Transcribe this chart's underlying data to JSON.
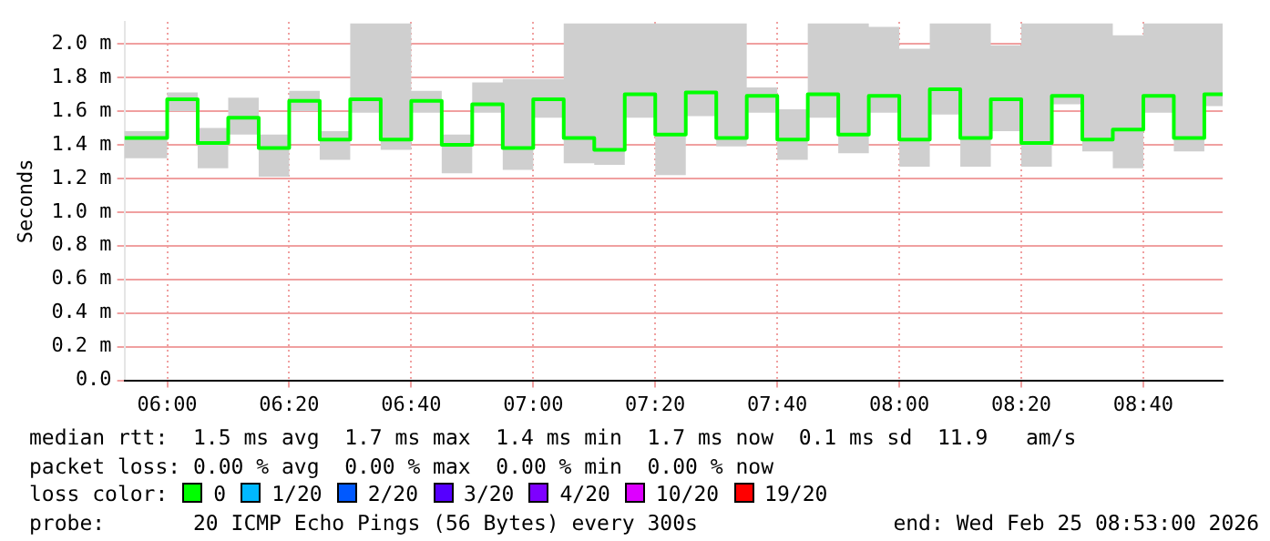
{
  "chart_data": {
    "type": "step",
    "ylabel": "Seconds",
    "x": [
      5.8833,
      6.0,
      6.0833,
      6.1667,
      6.25,
      6.3333,
      6.4167,
      6.5,
      6.5833,
      6.6667,
      6.75,
      6.8333,
      6.9167,
      7.0,
      7.0833,
      7.1667,
      7.25,
      7.3333,
      7.4167,
      7.5,
      7.5833,
      7.6667,
      7.75,
      7.8333,
      7.9167,
      8.0,
      8.0833,
      8.1667,
      8.25,
      8.3333,
      8.4167,
      8.5,
      8.5833,
      8.6667,
      8.75,
      8.8333,
      8.8833
    ],
    "series": [
      {
        "color": "#00ff00",
        "values": [
          1.44,
          1.67,
          1.41,
          1.56,
          1.38,
          1.66,
          1.43,
          1.67,
          1.43,
          1.66,
          1.4,
          1.64,
          1.38,
          1.67,
          1.44,
          1.37,
          1.7,
          1.46,
          1.71,
          1.44,
          1.69,
          1.43,
          1.7,
          1.46,
          1.69,
          1.43,
          1.73,
          1.44,
          1.67,
          1.41,
          1.69,
          1.43,
          1.49,
          1.69,
          1.44,
          1.7,
          1.7
        ],
        "lower": [
          1.32,
          1.6,
          1.26,
          1.46,
          1.21,
          1.6,
          1.31,
          1.59,
          1.37,
          1.59,
          1.23,
          1.59,
          1.25,
          1.56,
          1.29,
          1.28,
          1.56,
          1.22,
          1.57,
          1.39,
          1.59,
          1.31,
          1.56,
          1.35,
          1.59,
          1.27,
          1.58,
          1.27,
          1.48,
          1.27,
          1.64,
          1.36,
          1.26,
          1.59,
          1.36,
          1.63,
          1.63
        ],
        "upper": [
          1.48,
          1.71,
          1.5,
          1.68,
          1.46,
          1.72,
          1.48,
          2.12,
          2.12,
          1.72,
          1.46,
          1.77,
          1.79,
          1.79,
          2.12,
          2.12,
          2.12,
          2.12,
          2.12,
          2.12,
          1.74,
          1.61,
          2.12,
          2.12,
          2.1,
          1.97,
          2.12,
          2.12,
          1.99,
          2.12,
          2.12,
          2.12,
          2.05,
          2.12,
          2.12,
          2.12,
          2.12
        ]
      }
    ],
    "xlim": [
      5.8833,
      8.8833
    ],
    "xticks": [
      {
        "value": 6.0,
        "label": "06:00"
      },
      {
        "value": 6.3333,
        "label": "06:20"
      },
      {
        "value": 6.6667,
        "label": "06:40"
      },
      {
        "value": 7.0,
        "label": "07:00"
      },
      {
        "value": 7.3333,
        "label": "07:20"
      },
      {
        "value": 7.6667,
        "label": "07:40"
      },
      {
        "value": 8.0,
        "label": "08:00"
      },
      {
        "value": 8.3333,
        "label": "08:20"
      },
      {
        "value": 8.6667,
        "label": "08:40"
      }
    ],
    "ylim": [
      0,
      2.13
    ],
    "yticks": [
      {
        "value": 0,
        "label": "0.0"
      },
      {
        "value": 0.2,
        "label": "0.2 m"
      },
      {
        "value": 0.4,
        "label": "0.4 m"
      },
      {
        "value": 0.6,
        "label": "0.6 m"
      },
      {
        "value": 0.8,
        "label": "0.8 m"
      },
      {
        "value": 1.0,
        "label": "1.0 m"
      },
      {
        "value": 1.2,
        "label": "1.2 m"
      },
      {
        "value": 1.4,
        "label": "1.4 m"
      },
      {
        "value": 1.6,
        "label": "1.6 m"
      },
      {
        "value": 1.8,
        "label": "1.8 m"
      },
      {
        "value": 2.0,
        "label": "2.0 m"
      }
    ],
    "grid": true,
    "legend": false,
    "annotations": [
      "median rtt:  1.5 ms avg  1.7 ms max  1.4 ms min  1.7 ms now  0.1 ms sd  11.9   am/s",
      "packet loss: 0.00 % avg  0.00 % max  0.00 % min  0.00 % now",
      "loss color:",
      "0",
      "1/20",
      "2/20",
      "3/20",
      "4/20",
      "10/20",
      "19/20",
      "probe:       20 ICMP Echo Pings (56 Bytes) every 300s",
      "end: Wed Feb 25 08:53:00 2026"
    ]
  }
}
